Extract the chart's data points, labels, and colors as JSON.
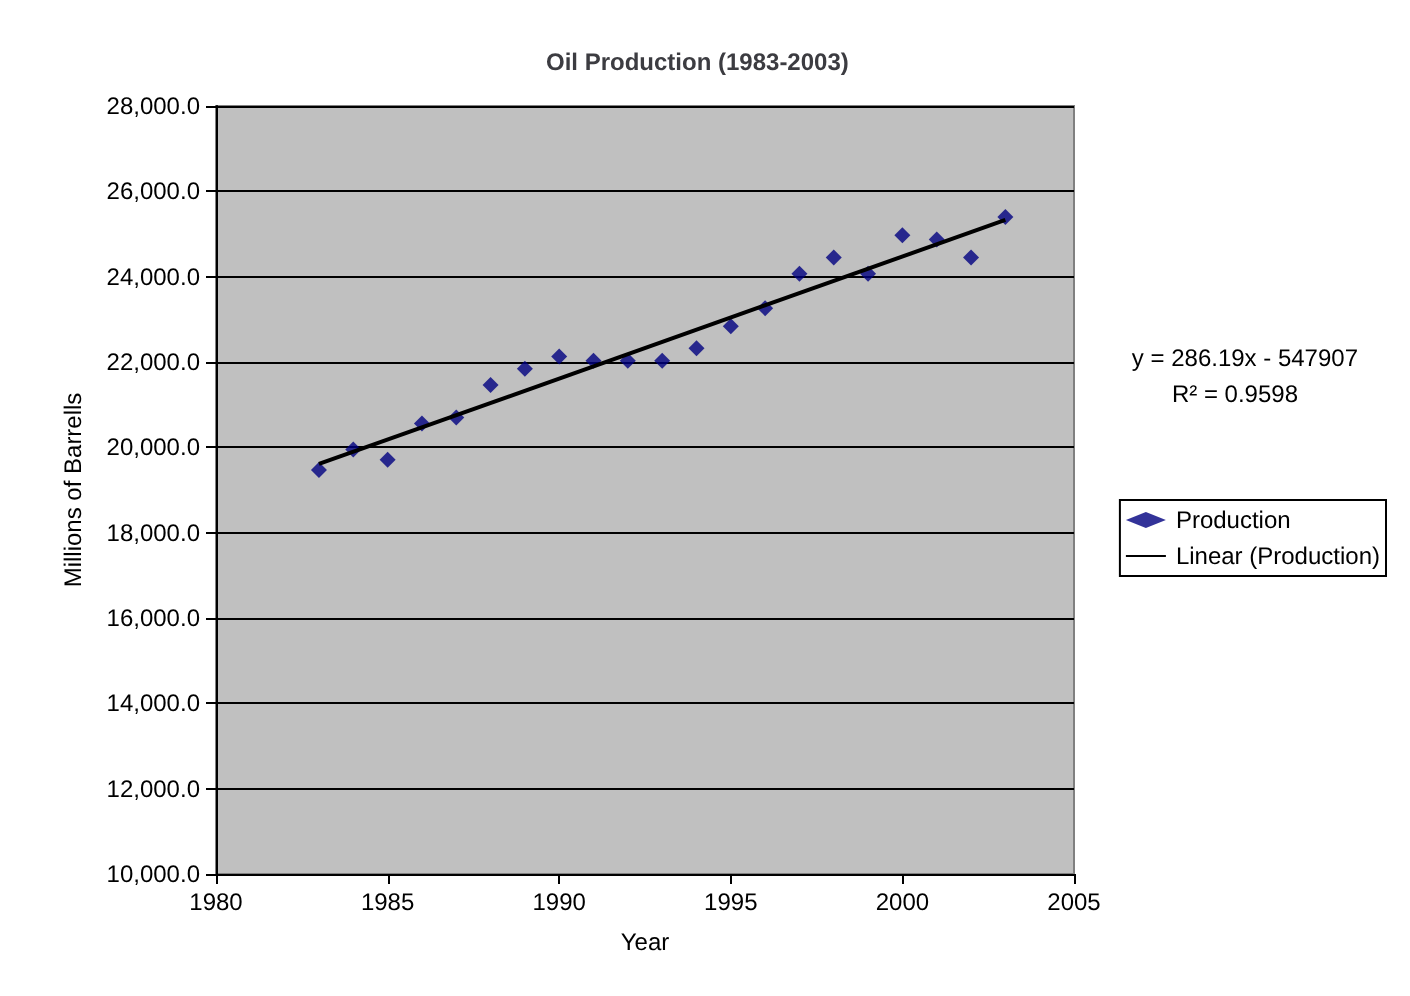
{
  "chart_data": {
    "type": "scatter",
    "title": "Oil Production (1983-2003)",
    "xlabel": "Year",
    "ylabel": "Millions of Barrells",
    "x": [
      1983,
      1984,
      1985,
      1986,
      1987,
      1988,
      1989,
      1990,
      1991,
      1992,
      1993,
      1994,
      1995,
      1996,
      1997,
      1998,
      1999,
      2000,
      2001,
      2002,
      2003
    ],
    "series": [
      {
        "name": "Production",
        "color": "#000080",
        "marker": "diamond",
        "values": [
          19470,
          19950,
          19710,
          20560,
          20700,
          21460,
          21840,
          22130,
          22030,
          22030,
          22030,
          22320,
          22840,
          23260,
          24070,
          24450,
          24070,
          24970,
          24870,
          24450,
          25400
        ]
      },
      {
        "name": "Linear (Production)",
        "type": "line",
        "color": "#000000",
        "marker": "none",
        "line_style": "solid",
        "x": [
          1983,
          2003
        ],
        "values": [
          19610,
          25330
        ]
      }
    ],
    "xlim": [
      1980,
      2005
    ],
    "xticks": [
      1980,
      1985,
      1990,
      1995,
      2000,
      2005
    ],
    "ylim": [
      10000,
      28000
    ],
    "yticks": [
      {
        "value": 10000,
        "label": "10,000.0"
      },
      {
        "value": 12000,
        "label": "12,000.0"
      },
      {
        "value": 14000,
        "label": "14,000.0"
      },
      {
        "value": 16000,
        "label": "16,000.0"
      },
      {
        "value": 18000,
        "label": "18,000.0"
      },
      {
        "value": 20000,
        "label": "20,000.0"
      },
      {
        "value": 22000,
        "label": "22,000.0"
      },
      {
        "value": 24000,
        "label": "24,000.0"
      },
      {
        "value": 26000,
        "label": "26,000.0"
      },
      {
        "value": 28000,
        "label": "28,000.0"
      }
    ],
    "grid": "y",
    "legend": "right",
    "annotations": [
      "y = 286.19x - 547907",
      "R² = 0.9598"
    ]
  }
}
